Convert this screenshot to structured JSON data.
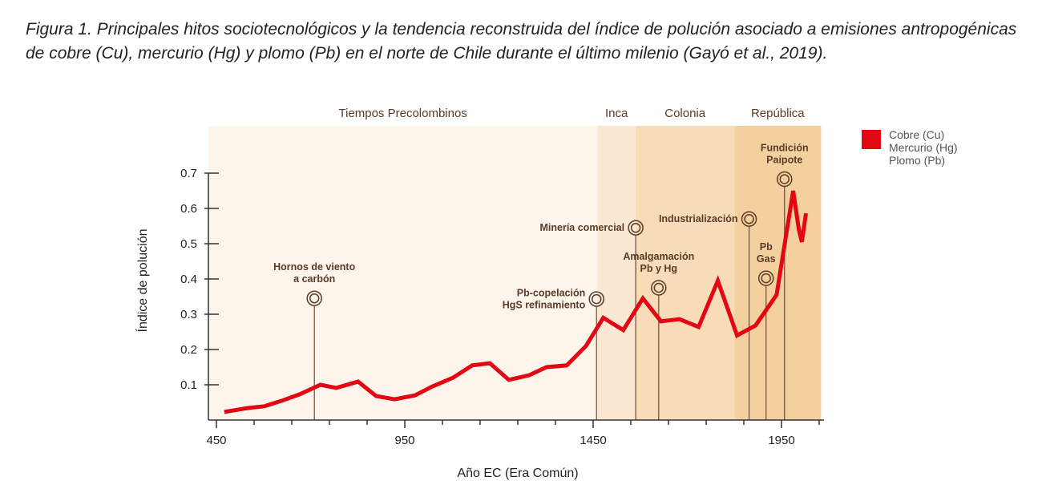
{
  "caption": {
    "label": "Figura 1.",
    "text": "Principales hitos sociotecnológicos y la tendencia reconstruida del índice de polución asociado a emisiones antropogénicas de cobre (Cu), mercurio (Hg) y plomo (Pb) en el norte de Chile durante el último milenio (Gayó et al., 2019)."
  },
  "chart_data": {
    "type": "line",
    "title": "",
    "xlabel": "Año EC (Era Común)",
    "ylabel": "Índice de polución",
    "xlim": [
      429,
      2055
    ],
    "ylim": [
      0,
      0.75
    ],
    "xticks": [
      450,
      950,
      1450,
      1950
    ],
    "xminor_step": 100,
    "yticks": [
      0.1,
      0.2,
      0.3,
      0.4,
      0.5,
      0.6,
      0.7
    ],
    "grid": false,
    "legend": {
      "placement": "right",
      "color": "#e30613",
      "entries": [
        "Cobre (Cu)",
        "Mercurio (Hg)",
        "Plomo (Pb)"
      ]
    },
    "series": [
      {
        "name": "Cobre (Cu) / Mercurio (Hg) / Plomo (Pb)",
        "color": "#e30613",
        "x": [
          471,
          533,
          577,
          624,
          671,
          726,
          768,
          826,
          874,
          923,
          977,
          1023,
          1078,
          1129,
          1176,
          1226,
          1280,
          1326,
          1380,
          1431,
          1477,
          1530,
          1582,
          1630,
          1679,
          1730,
          1781,
          1832,
          1881,
          1937,
          1981,
          1996,
          2004,
          2015
        ],
        "y": [
          0.023,
          0.034,
          0.039,
          0.055,
          0.073,
          0.1,
          0.091,
          0.109,
          0.068,
          0.059,
          0.07,
          0.095,
          0.12,
          0.155,
          0.161,
          0.114,
          0.127,
          0.15,
          0.155,
          0.21,
          0.29,
          0.255,
          0.345,
          0.28,
          0.286,
          0.264,
          0.395,
          0.24,
          0.268,
          0.355,
          0.65,
          0.54,
          0.505,
          0.586
        ]
      }
    ],
    "periods": [
      {
        "label": "Tiempos Precolombinos",
        "start": 429,
        "end": 1461,
        "color": "#fdf5ec"
      },
      {
        "label": "Inca",
        "start": 1461,
        "end": 1563,
        "color": "#fbe8d2"
      },
      {
        "label": "Colonia",
        "start": 1563,
        "end": 1825,
        "color": "#f8dcb8"
      },
      {
        "label": "República",
        "start": 1825,
        "end": 2055,
        "color": "#f5d09f"
      }
    ],
    "annotations": [
      {
        "lines": [
          "Hornos de viento",
          "a carbón"
        ],
        "year": 710,
        "value": 0.345,
        "align": "above"
      },
      {
        "lines": [
          "Pb-copelación",
          "HgS refinamiento"
        ],
        "year": 1459,
        "value": 0.343,
        "align": "left"
      },
      {
        "lines": [
          "Minería comercial"
        ],
        "year": 1563,
        "value": 0.545,
        "align": "left"
      },
      {
        "lines": [
          "Amalgamación",
          "Pb y Hg"
        ],
        "year": 1624,
        "value": 0.375,
        "align": "above"
      },
      {
        "lines": [
          "Industrialización"
        ],
        "year": 1864,
        "value": 0.57,
        "align": "left"
      },
      {
        "lines": [
          "Pb",
          "Gas"
        ],
        "year": 1909,
        "value": 0.402,
        "align": "above"
      },
      {
        "lines": [
          "Fundición",
          "Paipote"
        ],
        "year": 1958,
        "value": 0.683,
        "align": "above"
      }
    ]
  }
}
